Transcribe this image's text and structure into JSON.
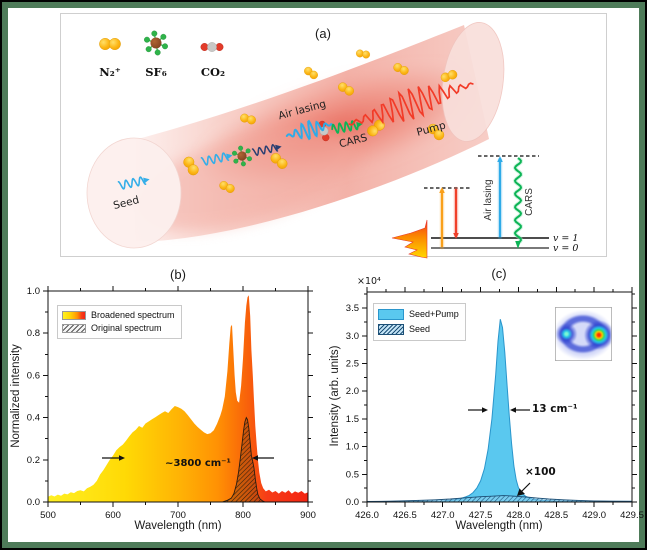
{
  "frame": {
    "outer_color": "#000000",
    "border_color": "#4e7b59",
    "background": "#ffffff"
  },
  "panel_a": {
    "label": "(a)",
    "molecule_legend": [
      {
        "name": "n2-plus-molecule",
        "label": "N₂⁺"
      },
      {
        "name": "sf6-molecule",
        "label": "SF₆"
      },
      {
        "name": "co2-molecule",
        "label": "CO₂"
      }
    ],
    "beam_labels": {
      "seed": "Seed",
      "air_lasing": "Air lasing",
      "cars": "CARS",
      "pump": "Pump"
    },
    "energy_diagram": {
      "air_lasing": "Air lasing",
      "cars": "CARS",
      "v1": "v = 1",
      "v0": "v = 0"
    },
    "colors": {
      "beam_pale": "#fbe6e2",
      "beam_mid": "#f3b2a8",
      "beam_hot": "#e96a5c",
      "molecule_yellow": "#fcb514",
      "molecule_yellow_hi": "#ffe06a",
      "molecule_yellow_edge": "#e09b00",
      "sf6_center": "#8a4a26",
      "sf6_outer": "#2fb34a",
      "co2_red": "#e23b2a",
      "co2_grey": "#c9c8c6",
      "seed_blue": "#35aee8",
      "seed_navy": "#2a3f72",
      "air_lasing_blue": "#2fabe8",
      "cars_green": "#0db456",
      "pump_red": "#f23b28",
      "arrow_orange": "#f9a01b",
      "arrow_red": "#f0402a",
      "level_grey": "#4d4d4d"
    }
  },
  "chart_data": [
    {
      "id": "b",
      "type": "area",
      "title": "(b)",
      "xlabel": "Wavelength (nm)",
      "ylabel": "Normalized intensity",
      "xlim": [
        500,
        900
      ],
      "ylim": [
        0,
        1.0
      ],
      "grid": false,
      "legend_position": "top-left",
      "xticks": [
        {
          "v": 500,
          "l": "500"
        },
        {
          "v": 600,
          "l": "600"
        },
        {
          "v": 700,
          "l": "700"
        },
        {
          "v": 800,
          "l": "800"
        },
        {
          "v": 900,
          "l": "900"
        }
      ],
      "yticks": [
        {
          "v": 0,
          "l": "0.0"
        },
        {
          "v": 0.2,
          "l": "0.2"
        },
        {
          "v": 0.4,
          "l": "0.4"
        },
        {
          "v": 0.6,
          "l": "0.6"
        },
        {
          "v": 0.8,
          "l": "0.8"
        },
        {
          "v": 1.0,
          "l": "1.0"
        }
      ],
      "x_minor_step": 50,
      "y_minor_step": 0.1,
      "annotation": {
        "text": "~3800 cm⁻¹"
      },
      "legend": [
        {
          "label": "Broadened spectrum",
          "swatch": "gradient-yellow-red"
        },
        {
          "label": "Original spectrum",
          "swatch": "hatch-gray"
        }
      ],
      "series": [
        {
          "name": "Broadened spectrum",
          "style": "gradient-yellow-red",
          "gradient": [
            [
              0,
              "#fff023"
            ],
            [
              0.3,
              "#ffd905"
            ],
            [
              0.5,
              "#ffb405"
            ],
            [
              0.65,
              "#ff9204"
            ],
            [
              0.72,
              "#fb7507"
            ],
            [
              0.78,
              "#f85c0c"
            ],
            [
              0.84,
              "#f63d17"
            ],
            [
              1,
              "#f42412"
            ]
          ],
          "points": [
            [
              500,
              0.025
            ],
            [
              505,
              0.032
            ],
            [
              510,
              0.026
            ],
            [
              515,
              0.035
            ],
            [
              520,
              0.03
            ],
            [
              525,
              0.04
            ],
            [
              530,
              0.036
            ],
            [
              535,
              0.046
            ],
            [
              540,
              0.042
            ],
            [
              545,
              0.052
            ],
            [
              550,
              0.056
            ],
            [
              555,
              0.05
            ],
            [
              560,
              0.065
            ],
            [
              565,
              0.072
            ],
            [
              570,
              0.082
            ],
            [
              575,
              0.1
            ],
            [
              580,
              0.13
            ],
            [
              585,
              0.15
            ],
            [
              590,
              0.175
            ],
            [
              595,
              0.2
            ],
            [
              600,
              0.22
            ],
            [
              605,
              0.245
            ],
            [
              610,
              0.26
            ],
            [
              615,
              0.272
            ],
            [
              620,
              0.29
            ],
            [
              625,
              0.312
            ],
            [
              630,
              0.33
            ],
            [
              635,
              0.342
            ],
            [
              640,
              0.36
            ],
            [
              645,
              0.352
            ],
            [
              650,
              0.372
            ],
            [
              655,
              0.382
            ],
            [
              660,
              0.392
            ],
            [
              665,
              0.402
            ],
            [
              670,
              0.412
            ],
            [
              675,
              0.422
            ],
            [
              680,
              0.43
            ],
            [
              685,
              0.422
            ],
            [
              690,
              0.44
            ],
            [
              695,
              0.455
            ],
            [
              700,
              0.45
            ],
            [
              705,
              0.442
            ],
            [
              710,
              0.43
            ],
            [
              715,
              0.412
            ],
            [
              720,
              0.392
            ],
            [
              725,
              0.372
            ],
            [
              730,
              0.356
            ],
            [
              735,
              0.342
            ],
            [
              740,
              0.33
            ],
            [
              745,
              0.322
            ],
            [
              750,
              0.326
            ],
            [
              755,
              0.34
            ],
            [
              760,
              0.37
            ],
            [
              765,
              0.41
            ],
            [
              768,
              0.44
            ],
            [
              772,
              0.5
            ],
            [
              776,
              0.62
            ],
            [
              779,
              0.75
            ],
            [
              781,
              0.83
            ],
            [
              783,
              0.84
            ],
            [
              785,
              0.72
            ],
            [
              787,
              0.6
            ],
            [
              789,
              0.52
            ],
            [
              791,
              0.48
            ],
            [
              794,
              0.47
            ],
            [
              797,
              0.55
            ],
            [
              800,
              0.68
            ],
            [
              803,
              0.85
            ],
            [
              805,
              0.93
            ],
            [
              807,
              0.97
            ],
            [
              809,
              0.98
            ],
            [
              811,
              0.88
            ],
            [
              813,
              0.72
            ],
            [
              815,
              0.6
            ],
            [
              817,
              0.48
            ],
            [
              819,
              0.36
            ],
            [
              821,
              0.27
            ],
            [
              823,
              0.2
            ],
            [
              825,
              0.14
            ],
            [
              828,
              0.09
            ],
            [
              831,
              0.065
            ],
            [
              835,
              0.05
            ],
            [
              840,
              0.058
            ],
            [
              845,
              0.045
            ],
            [
              850,
              0.052
            ],
            [
              855,
              0.04
            ],
            [
              860,
              0.052
            ],
            [
              865,
              0.044
            ],
            [
              870,
              0.056
            ],
            [
              875,
              0.04
            ],
            [
              880,
              0.05
            ],
            [
              885,
              0.044
            ],
            [
              890,
              0.052
            ],
            [
              895,
              0.04
            ],
            [
              900,
              0.046
            ]
          ]
        },
        {
          "name": "Original spectrum",
          "style": "hatch-gray",
          "hatch_color": "#2a1d0d",
          "fill_under": "rgba(120,60,15,0.35)",
          "outline": "#2b1d10",
          "points": [
            [
              768,
              0
            ],
            [
              776,
              0.008
            ],
            [
              782,
              0.018
            ],
            [
              786,
              0.04
            ],
            [
              790,
              0.085
            ],
            [
              793,
              0.14
            ],
            [
              796,
              0.21
            ],
            [
              799,
              0.29
            ],
            [
              801,
              0.34
            ],
            [
              803,
              0.38
            ],
            [
              805,
              0.4
            ],
            [
              807,
              0.39
            ],
            [
              809,
              0.35
            ],
            [
              811,
              0.28
            ],
            [
              813,
              0.22
            ],
            [
              815,
              0.19
            ],
            [
              817,
              0.16
            ],
            [
              819,
              0.11
            ],
            [
              821,
              0.065
            ],
            [
              823,
              0.035
            ],
            [
              826,
              0.015
            ],
            [
              830,
              0.005
            ],
            [
              834,
              0
            ]
          ]
        }
      ]
    },
    {
      "id": "c",
      "type": "area",
      "title": "(c)",
      "xlabel": "Wavelength (nm)",
      "ylabel": "Intensity (arb. units)",
      "scale_label": "×10⁴",
      "xlim": [
        426.0,
        429.5
      ],
      "ylim": [
        0,
        3.5
      ],
      "grid": false,
      "legend_position": "top-left",
      "xticks": [
        {
          "v": 426,
          "l": "426.0"
        },
        {
          "v": 426.5,
          "l": "426.5"
        },
        {
          "v": 427,
          "l": "427.0"
        },
        {
          "v": 427.5,
          "l": "427.5"
        },
        {
          "v": 428,
          "l": "428.0"
        },
        {
          "v": 428.5,
          "l": "428.5"
        },
        {
          "v": 429,
          "l": "429.0"
        },
        {
          "v": 429.5,
          "l": "429.5"
        }
      ],
      "yticks": [
        {
          "v": 0,
          "l": "0.0"
        },
        {
          "v": 0.5,
          "l": "0.5"
        },
        {
          "v": 1,
          "l": "1.0"
        },
        {
          "v": 1.5,
          "l": "1.5"
        },
        {
          "v": 2,
          "l": "2.0"
        },
        {
          "v": 2.5,
          "l": "2.5"
        },
        {
          "v": 3,
          "l": "3.0"
        },
        {
          "v": 3.5,
          "l": "3.5"
        }
      ],
      "x_minor_step": 0.25,
      "y_minor_step": 0.25,
      "annotations": {
        "width": "13 cm⁻¹",
        "scale": "×100"
      },
      "legend": [
        {
          "label": "Seed+Pump",
          "swatch": "solid-blue"
        },
        {
          "label": "Seed",
          "swatch": "hatch-blue"
        }
      ],
      "inset_colors": {
        "hot": "#ff2d00",
        "warm": "#ffd400",
        "green": "#35d955",
        "cyan": "#24c9e8",
        "ring": "#2b3fd0"
      },
      "series": [
        {
          "name": "Seed+Pump",
          "style": "solid-blue",
          "fill": "#5ac8ef",
          "outline": "#2a96cc",
          "points": [
            [
              426,
              0.008
            ],
            [
              426.2,
              0.009
            ],
            [
              426.4,
              0.01
            ],
            [
              426.6,
              0.012
            ],
            [
              426.8,
              0.015
            ],
            [
              427,
              0.02
            ],
            [
              427.1,
              0.03
            ],
            [
              427.2,
              0.05
            ],
            [
              427.3,
              0.09
            ],
            [
              427.35,
              0.12
            ],
            [
              427.4,
              0.17
            ],
            [
              427.45,
              0.25
            ],
            [
              427.5,
              0.38
            ],
            [
              427.55,
              0.6
            ],
            [
              427.6,
              0.95
            ],
            [
              427.65,
              1.5
            ],
            [
              427.7,
              2.3
            ],
            [
              427.73,
              2.9
            ],
            [
              427.76,
              3.3
            ],
            [
              427.79,
              3.15
            ],
            [
              427.82,
              2.7
            ],
            [
              427.85,
              2.1
            ],
            [
              427.88,
              1.55
            ],
            [
              427.91,
              1.05
            ],
            [
              427.94,
              0.65
            ],
            [
              427.97,
              0.4
            ],
            [
              428,
              0.26
            ],
            [
              428.05,
              0.15
            ],
            [
              428.1,
              0.1
            ],
            [
              428.15,
              0.07
            ],
            [
              428.2,
              0.05
            ],
            [
              428.3,
              0.035
            ],
            [
              428.4,
              0.025
            ],
            [
              428.5,
              0.02
            ],
            [
              428.7,
              0.015
            ],
            [
              429,
              0.012
            ],
            [
              429.2,
              0.01
            ],
            [
              429.5,
              0.01
            ]
          ]
        },
        {
          "name": "Seed",
          "style": "hatch-blue",
          "hatch_color": "#1c4f76",
          "fill_under": "rgba(150,210,240,0.5)",
          "outline": "#1c4f76",
          "points": [
            [
              426,
              0.01
            ],
            [
              426.3,
              0.015
            ],
            [
              426.6,
              0.025
            ],
            [
              426.9,
              0.04
            ],
            [
              427.1,
              0.055
            ],
            [
              427.3,
              0.075
            ],
            [
              427.5,
              0.095
            ],
            [
              427.65,
              0.105
            ],
            [
              427.8,
              0.115
            ],
            [
              427.9,
              0.11
            ],
            [
              428,
              0.1
            ],
            [
              428.1,
              0.09
            ],
            [
              428.25,
              0.07
            ],
            [
              428.4,
              0.055
            ],
            [
              428.6,
              0.04
            ],
            [
              428.8,
              0.028
            ],
            [
              429,
              0.02
            ],
            [
              429.25,
              0.015
            ],
            [
              429.5,
              0.012
            ]
          ]
        }
      ]
    }
  ]
}
